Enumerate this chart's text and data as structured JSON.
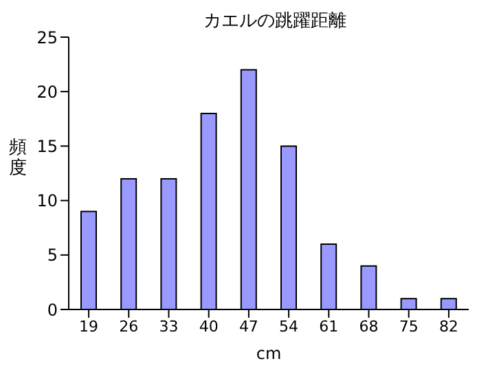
{
  "chart_data": {
    "type": "bar",
    "title": "カエルの跳躍距離",
    "xlabel": "cm",
    "ylabel": "頻度",
    "categories": [
      "19",
      "26",
      "33",
      "40",
      "47",
      "54",
      "61",
      "68",
      "75",
      "82"
    ],
    "values": [
      9,
      12,
      12,
      18,
      22,
      15,
      6,
      4,
      1,
      1
    ],
    "color": "#9999ff",
    "ylim": [
      0,
      25
    ],
    "yticks": [
      0,
      5,
      10,
      15,
      20,
      25
    ]
  }
}
